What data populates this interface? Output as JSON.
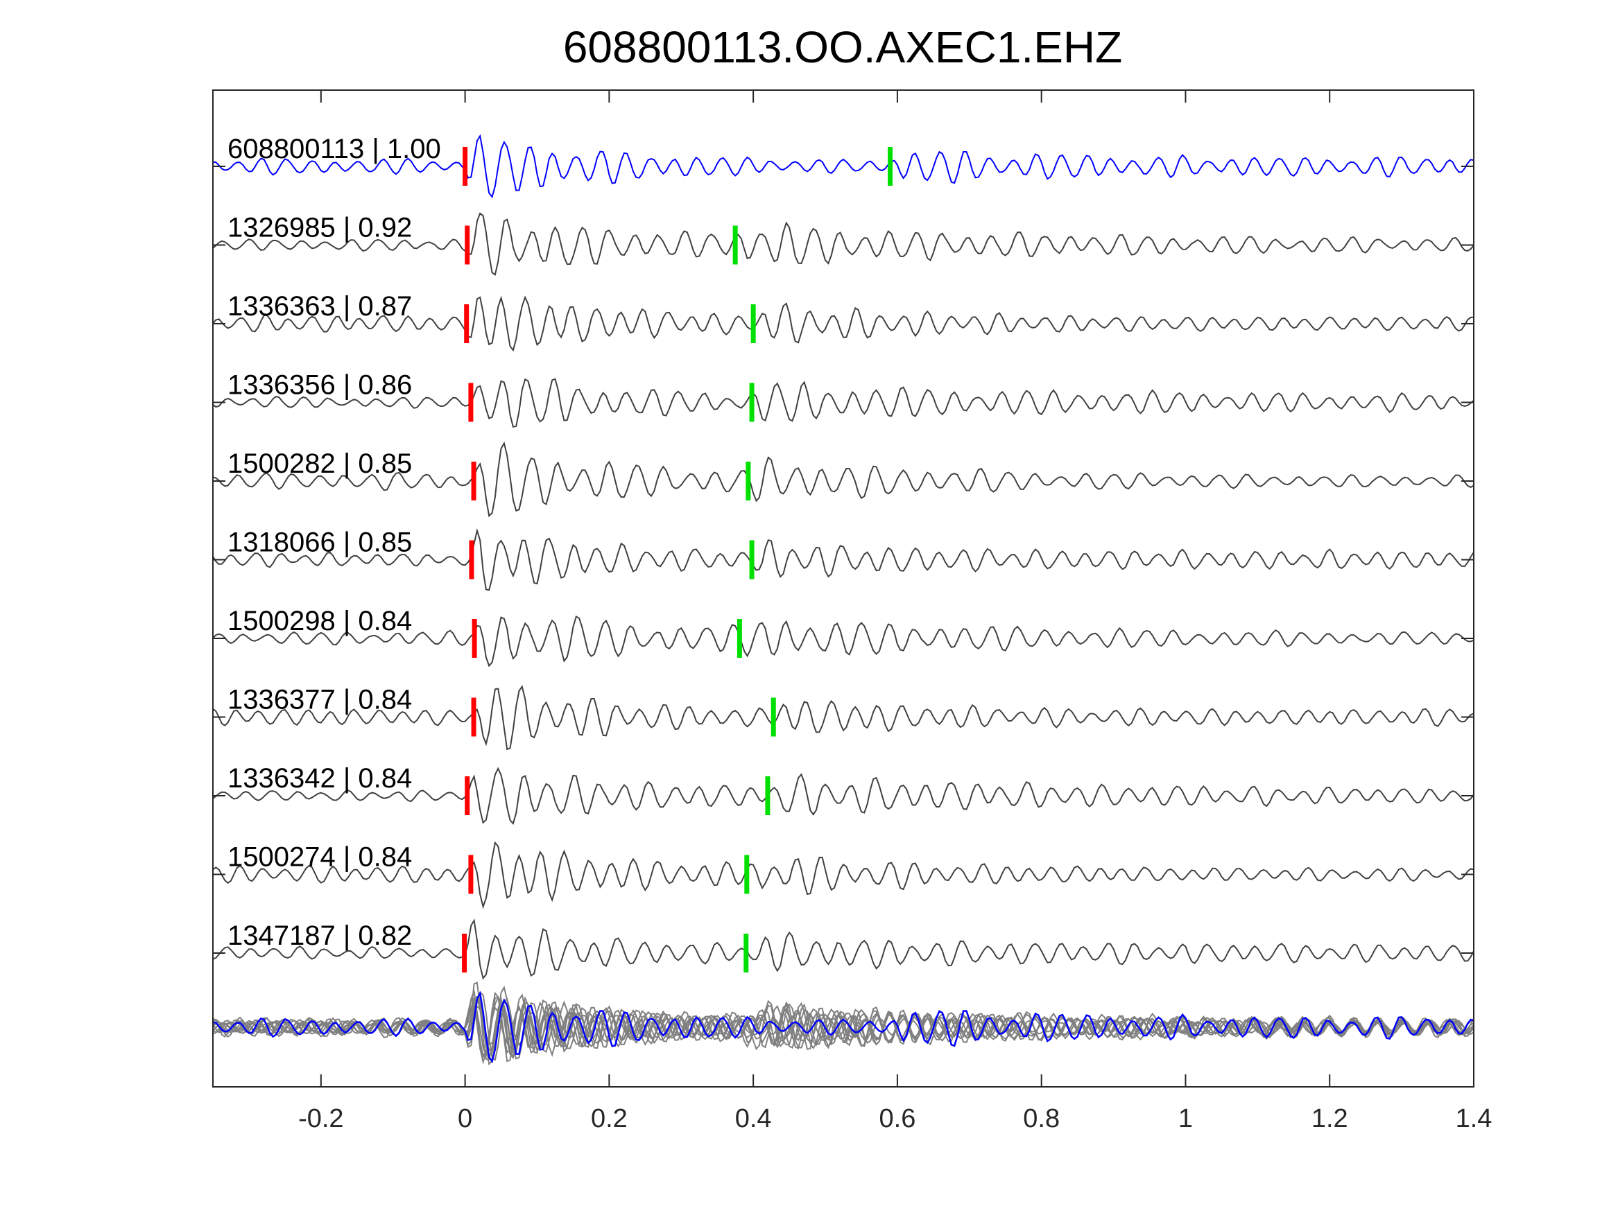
{
  "chart_data": {
    "type": "line",
    "title": "608800113.OO.AXEC1.EHZ",
    "xlabel": "",
    "ylabel": "",
    "xlim": [
      -0.35,
      1.4
    ],
    "xticks": [
      -0.2,
      0,
      0.2,
      0.4,
      0.6,
      0.8,
      1,
      1.2,
      1.4
    ],
    "xtick_labels": [
      "-0.2",
      "0",
      "0.2",
      "0.4",
      "0.6",
      "0.8",
      "1",
      "1.2",
      "1.4"
    ],
    "grid": false,
    "colors": {
      "template_trace": "#0000ff",
      "neighbor_trace": "#404040",
      "overlay_trace": "#808080",
      "p_pick": "#ff0000",
      "s_pick": "#00e000",
      "axes": "#262626"
    },
    "traces": [
      {
        "label": "608800113 | 1.00",
        "event_id": "608800113",
        "cc": 1.0,
        "p_pick": 0.0,
        "s_pick": 0.59,
        "color": "template"
      },
      {
        "label": "1326985 | 0.92",
        "event_id": "1326985",
        "cc": 0.92,
        "p_pick": 0.003,
        "s_pick": 0.375,
        "color": "neighbor"
      },
      {
        "label": "1336363 | 0.87",
        "event_id": "1336363",
        "cc": 0.87,
        "p_pick": 0.002,
        "s_pick": 0.4,
        "color": "neighbor"
      },
      {
        "label": "1336356 | 0.86",
        "event_id": "1336356",
        "cc": 0.86,
        "p_pick": 0.008,
        "s_pick": 0.398,
        "color": "neighbor"
      },
      {
        "label": "1500282 | 0.85",
        "event_id": "1500282",
        "cc": 0.85,
        "p_pick": 0.012,
        "s_pick": 0.393,
        "color": "neighbor"
      },
      {
        "label": "1318066 | 0.85",
        "event_id": "1318066",
        "cc": 0.85,
        "p_pick": 0.009,
        "s_pick": 0.398,
        "color": "neighbor"
      },
      {
        "label": "1500298 | 0.84",
        "event_id": "1500298",
        "cc": 0.84,
        "p_pick": 0.013,
        "s_pick": 0.381,
        "color": "neighbor"
      },
      {
        "label": "1336377 | 0.84",
        "event_id": "1336377",
        "cc": 0.84,
        "p_pick": 0.012,
        "s_pick": 0.428,
        "color": "neighbor"
      },
      {
        "label": "1336342 | 0.84",
        "event_id": "1336342",
        "cc": 0.84,
        "p_pick": 0.003,
        "s_pick": 0.42,
        "color": "neighbor"
      },
      {
        "label": "1500274 | 0.84",
        "event_id": "1500274",
        "cc": 0.84,
        "p_pick": 0.008,
        "s_pick": 0.391,
        "color": "neighbor"
      },
      {
        "label": "1347187 | 0.82",
        "event_id": "1347187",
        "cc": 0.82,
        "p_pick": -0.001,
        "s_pick": 0.39,
        "color": "neighbor"
      }
    ],
    "overlay": {
      "description_visible": false,
      "includes_template": true
    }
  }
}
